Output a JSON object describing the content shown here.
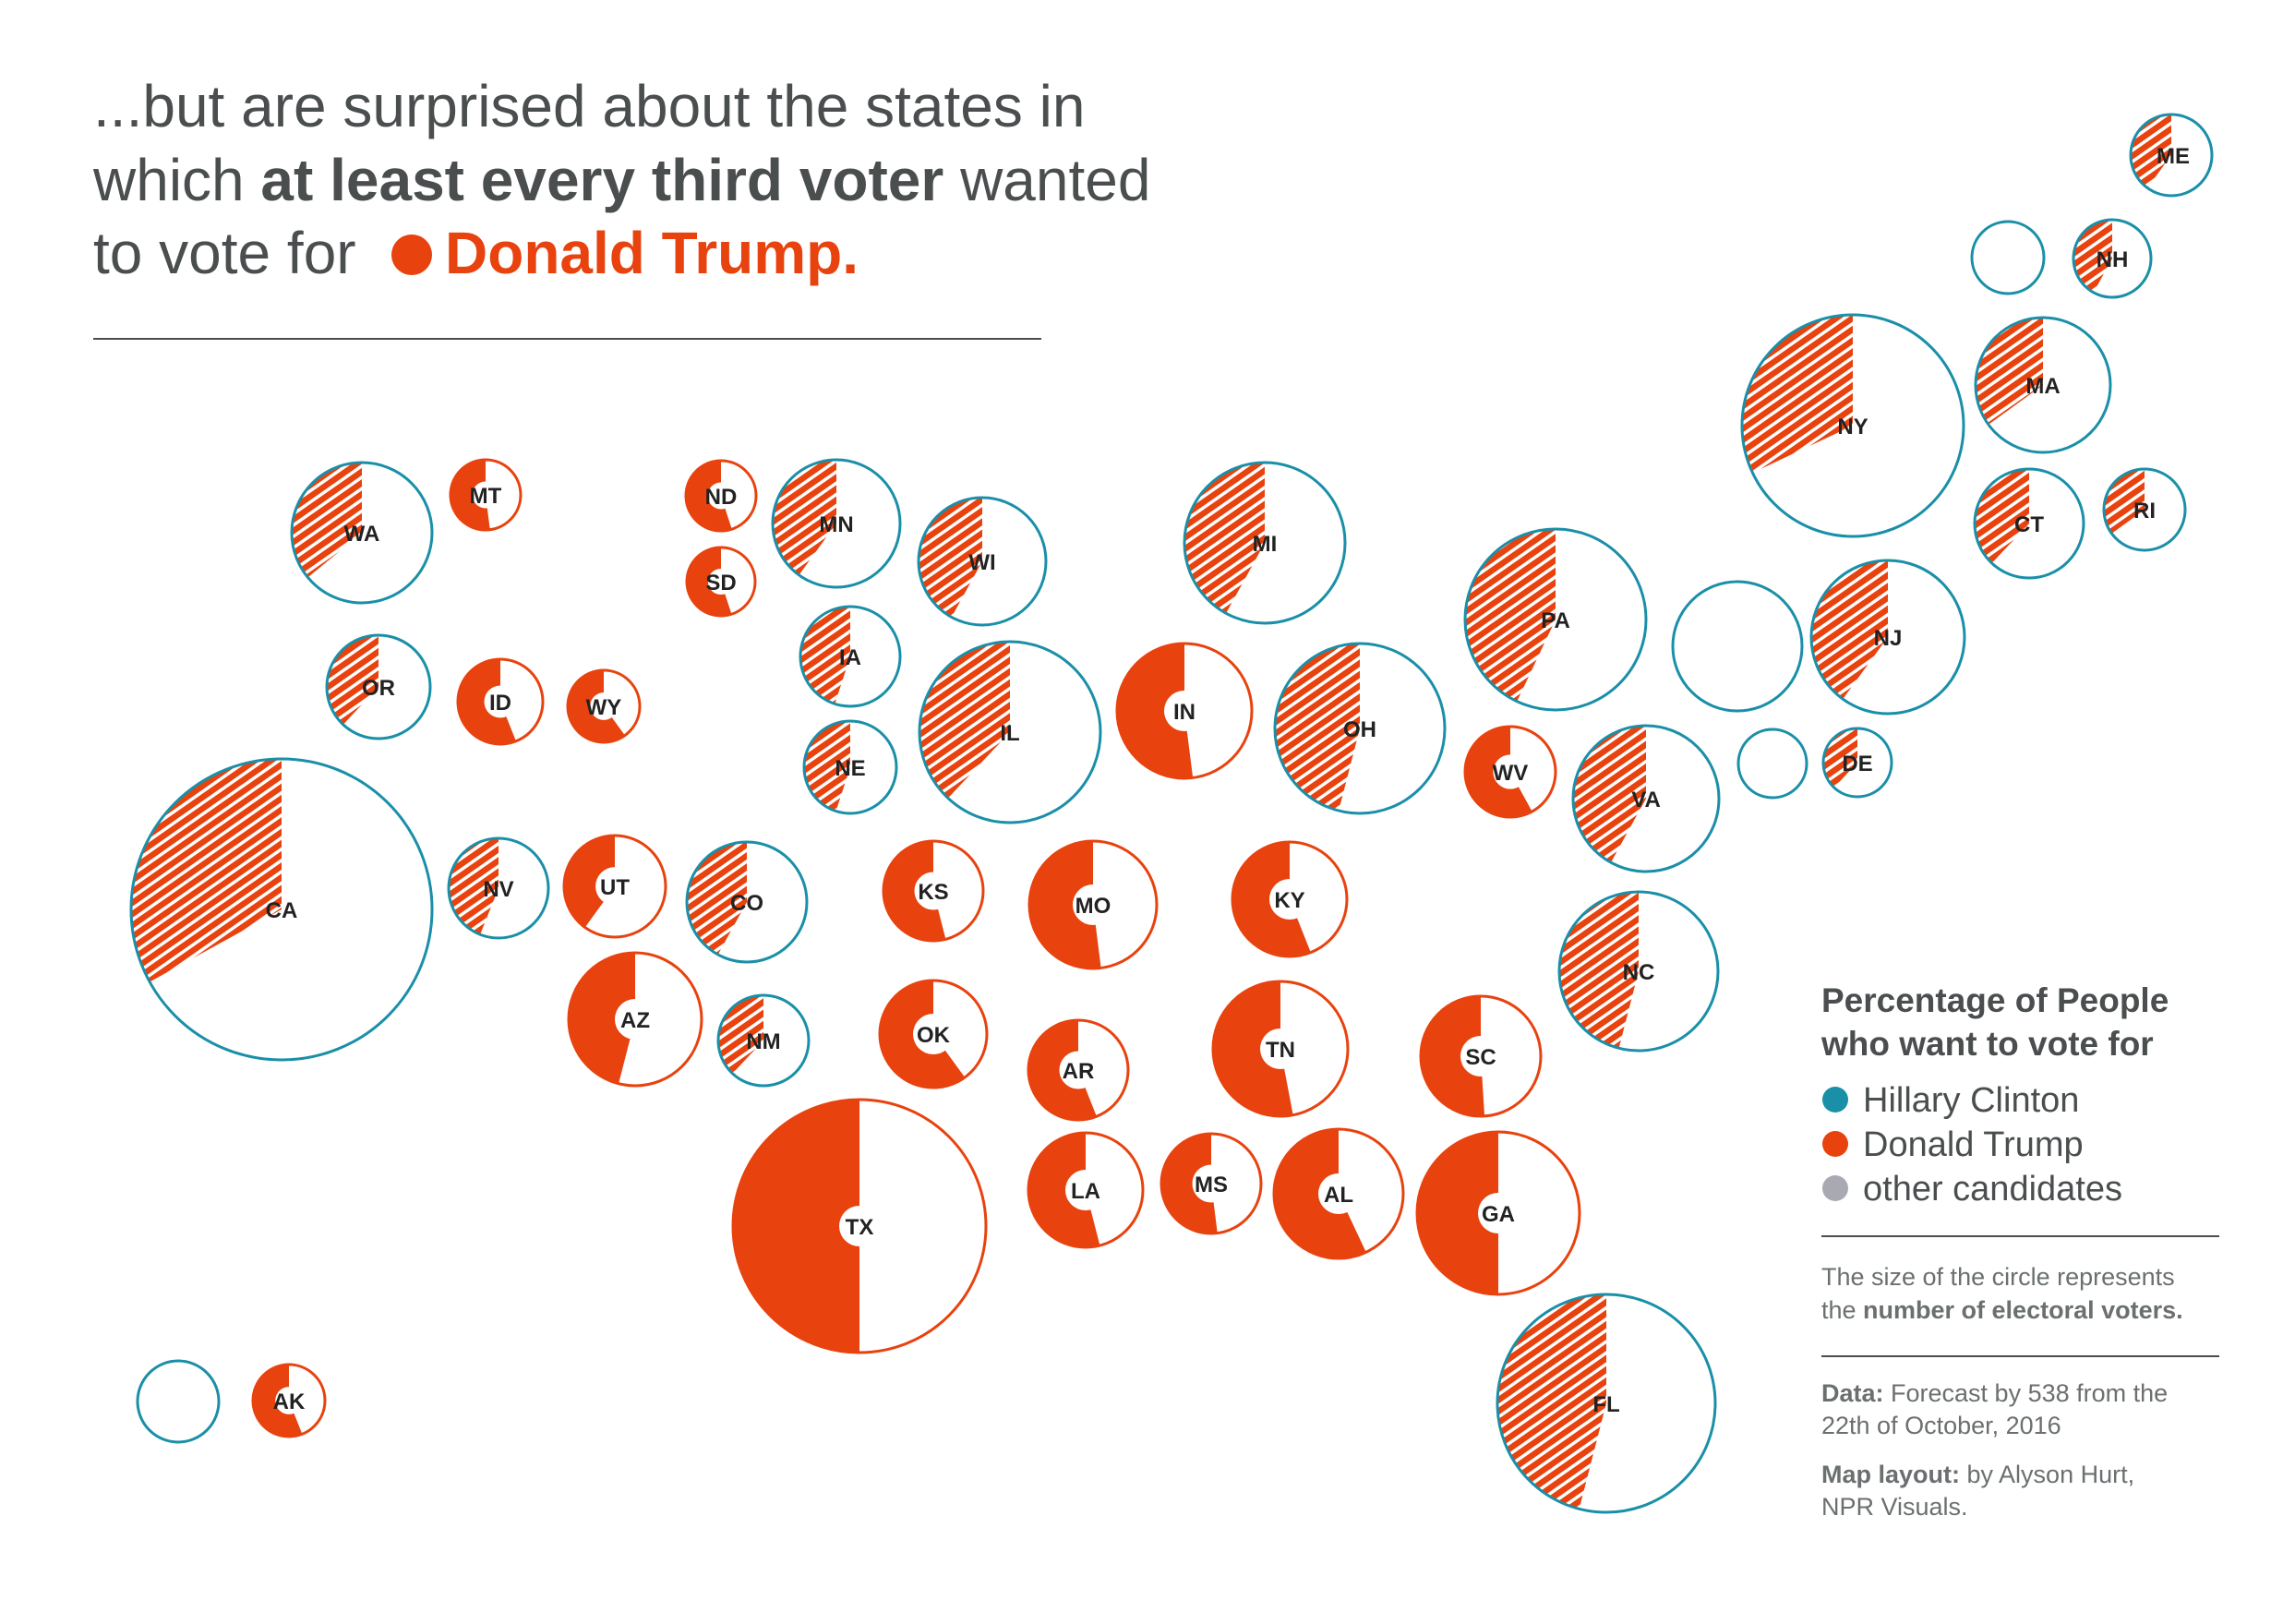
{
  "title": {
    "line1": "...but are surprised about the states in",
    "line2_pre": "which ",
    "line2_bold": "at least every third voter",
    "line2_post": " wanted",
    "line3_pre": "to vote for ",
    "line3_highlight": "Donald Trump."
  },
  "colors": {
    "clinton": "#1a8fa8",
    "trump": "#e8420e",
    "other": "#a9a9b3",
    "text": "#4a4e4f"
  },
  "legend": {
    "title_line1": "Percentage of People",
    "title_line2": "who want to vote for",
    "items": [
      {
        "label": "Hillary Clinton",
        "color": "#1a8fa8"
      },
      {
        "label": "Donald Trump",
        "color": "#e8420e"
      },
      {
        "label": "other candidates",
        "color": "#a9a9b3"
      }
    ],
    "size_note_line1": "The size of the circle represents",
    "size_note_line2_pre": "the ",
    "size_note_line2_bold": "number of electoral voters.",
    "data_bold": "Data:",
    "data_text": " Forecast by 538 from the",
    "data_text2": "22th of October, 2016",
    "layout_bold": "Map layout:",
    "layout_text": " by Alyson Hurt,",
    "layout_text2": "NPR Visuals."
  },
  "states": [
    {
      "label": "ME",
      "fill": "hatch",
      "ring": "clinton",
      "trump_share": 0.4
    },
    {
      "label": "",
      "fill": "none",
      "ring": "clinton",
      "trump_share": 0
    },
    {
      "label": "NH",
      "fill": "hatch",
      "ring": "clinton",
      "trump_share": 0.42
    },
    {
      "label": "NY",
      "fill": "hatch",
      "ring": "clinton",
      "trump_share": 0.32
    },
    {
      "label": "MA",
      "fill": "hatch",
      "ring": "clinton",
      "trump_share": 0.35
    },
    {
      "label": "WA",
      "fill": "hatch",
      "ring": "clinton",
      "trump_share": 0.36
    },
    {
      "label": "MT",
      "fill": "solid",
      "ring": "trump",
      "trump_share": 0.52
    },
    {
      "label": "ND",
      "fill": "solid",
      "ring": "trump",
      "trump_share": 0.55
    },
    {
      "label": "MN",
      "fill": "hatch",
      "ring": "clinton",
      "trump_share": 0.4
    },
    {
      "label": "WI",
      "fill": "hatch",
      "ring": "clinton",
      "trump_share": 0.42
    },
    {
      "label": "MI",
      "fill": "hatch",
      "ring": "clinton",
      "trump_share": 0.42
    },
    {
      "label": "CT",
      "fill": "hatch",
      "ring": "clinton",
      "trump_share": 0.38
    },
    {
      "label": "RI",
      "fill": "hatch",
      "ring": "clinton",
      "trump_share": 0.35
    },
    {
      "label": "SD",
      "fill": "solid",
      "ring": "trump",
      "trump_share": 0.55
    },
    {
      "label": "IA",
      "fill": "hatch",
      "ring": "clinton",
      "trump_share": 0.45
    },
    {
      "label": "PA",
      "fill": "hatch",
      "ring": "clinton",
      "trump_share": 0.43
    },
    {
      "label": "",
      "fill": "none",
      "ring": "clinton",
      "trump_share": 0
    },
    {
      "label": "NJ",
      "fill": "hatch",
      "ring": "clinton",
      "trump_share": 0.4
    },
    {
      "label": "OR",
      "fill": "hatch",
      "ring": "clinton",
      "trump_share": 0.38
    },
    {
      "label": "ID",
      "fill": "solid",
      "ring": "trump",
      "trump_share": 0.56
    },
    {
      "label": "WY",
      "fill": "solid",
      "ring": "trump",
      "trump_share": 0.6
    },
    {
      "label": "IL",
      "fill": "hatch",
      "ring": "clinton",
      "trump_share": 0.38
    },
    {
      "label": "IN",
      "fill": "solid",
      "ring": "trump",
      "trump_share": 0.52
    },
    {
      "label": "OH",
      "fill": "hatch",
      "ring": "clinton",
      "trump_share": 0.46
    },
    {
      "label": "NE",
      "fill": "hatch",
      "ring": "clinton",
      "trump_share": 0.45
    },
    {
      "label": "WV",
      "fill": "solid",
      "ring": "trump",
      "trump_share": 0.58
    },
    {
      "label": "VA",
      "fill": "hatch",
      "ring": "clinton",
      "trump_share": 0.42
    },
    {
      "label": "",
      "fill": "none",
      "ring": "clinton",
      "trump_share": 0
    },
    {
      "label": "DE",
      "fill": "hatch",
      "ring": "clinton",
      "trump_share": 0.38
    },
    {
      "label": "CA",
      "fill": "hatch",
      "ring": "clinton",
      "trump_share": 0.33
    },
    {
      "label": "NV",
      "fill": "hatch",
      "ring": "clinton",
      "trump_share": 0.44
    },
    {
      "label": "UT",
      "fill": "solid",
      "ring": "trump",
      "trump_share": 0.4
    },
    {
      "label": "CO",
      "fill": "hatch",
      "ring": "clinton",
      "trump_share": 0.42
    },
    {
      "label": "KS",
      "fill": "solid",
      "ring": "trump",
      "trump_share": 0.54
    },
    {
      "label": "MO",
      "fill": "solid",
      "ring": "trump",
      "trump_share": 0.52
    },
    {
      "label": "KY",
      "fill": "solid",
      "ring": "trump",
      "trump_share": 0.56
    },
    {
      "label": "NC",
      "fill": "hatch",
      "ring": "clinton",
      "trump_share": 0.46
    },
    {
      "label": "AZ",
      "fill": "solid",
      "ring": "trump",
      "trump_share": 0.46
    },
    {
      "label": "NM",
      "fill": "hatch",
      "ring": "clinton",
      "trump_share": 0.38
    },
    {
      "label": "OK",
      "fill": "solid",
      "ring": "trump",
      "trump_share": 0.6
    },
    {
      "label": "AR",
      "fill": "solid",
      "ring": "trump",
      "trump_share": 0.56
    },
    {
      "label": "TN",
      "fill": "solid",
      "ring": "trump",
      "trump_share": 0.53
    },
    {
      "label": "SC",
      "fill": "solid",
      "ring": "trump",
      "trump_share": 0.51
    },
    {
      "label": "TX",
      "fill": "solid",
      "ring": "trump",
      "trump_share": 0.5
    },
    {
      "label": "LA",
      "fill": "solid",
      "ring": "trump",
      "trump_share": 0.54
    },
    {
      "label": "MS",
      "fill": "solid",
      "ring": "trump",
      "trump_share": 0.52
    },
    {
      "label": "AL",
      "fill": "solid",
      "ring": "trump",
      "trump_share": 0.57
    },
    {
      "label": "GA",
      "fill": "solid",
      "ring": "trump",
      "trump_share": 0.5
    },
    {
      "label": "FL",
      "fill": "hatch",
      "ring": "clinton",
      "trump_share": 0.46
    },
    {
      "label": "",
      "fill": "none",
      "ring": "clinton",
      "trump_share": 0
    },
    {
      "label": "AK",
      "fill": "solid",
      "ring": "trump",
      "trump_share": 0.56
    }
  ]
}
